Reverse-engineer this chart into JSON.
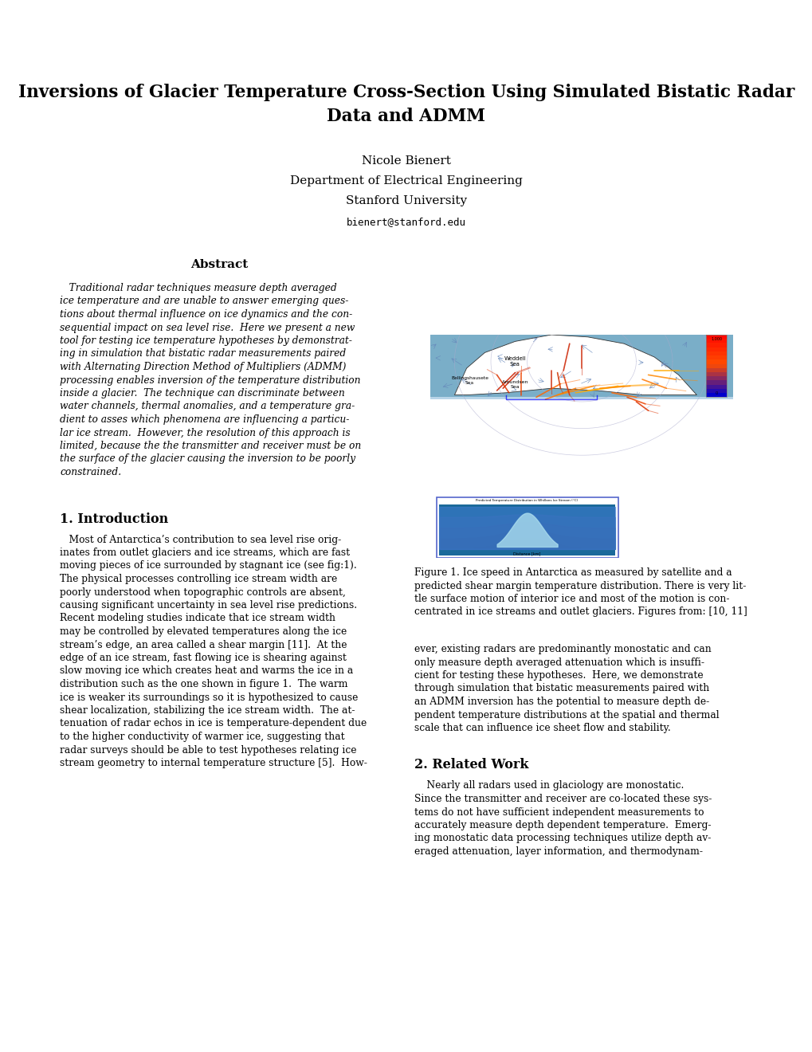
{
  "title_line1": "Inversions of Glacier Temperature Cross-Section Using Simulated Bistatic Radar",
  "title_line2": "Data and ADMM",
  "author": "Nicole Bienert",
  "affil1": "Department of Electrical Engineering",
  "affil2": "Stanford University",
  "email": "bienert@stanford.edu",
  "abstract_title": "Abstract",
  "abstract_text": "Traditional radar techniques measure depth averaged ice temperature and are unable to answer emerging questions about thermal influence on ice dynamics and the consequential impact on sea level rise. Here we present a new tool for testing ice temperature hypotheses by demonstrating in simulation that bistatic radar measurements paired with Alternating Direction Method of Multipliers (ADMM) processing enables inversion of the temperature distribution inside a glacier.  The technique can discriminate between water channels, thermal anomalies, and a temperature gradient to asses which phenomena are influencing a particular ice stream.  However, the resolution of this approach is limited, because the the transmitter and receiver must be on the surface of the glacier causing the inversion to be poorly constrained.",
  "section1_title": "1. Introduction",
  "section1_col1": "    Most of Antarctica’s contribution to sea level rise originates from outlet glaciers and ice streams, which are fast moving pieces of ice surrounded by stagnant ice (see fig:1). The physical processes controlling ice stream width are poorly understood when topographic controls are absent, causing significant uncertainty in sea level rise predictions. Recent modeling studies indicate that ice stream width may be controlled by elevated temperatures along the ice stream’s edge, an area called a shear margin [11].  At the edge of an ice stream, fast flowing ice is shearing against slow moving ice which creates heat and warms the ice in a distribution such as the one shown in figure 1.  The warm ice is weaker its surroundings so it is hypothesized to cause shear localization, stabilizing the ice stream width.  The attenuation of radar echos in ice is temperature-dependent due to the higher conductivity of warmer ice, suggesting that radar surveys should be able to test hypotheses relating ice stream geometry to internal temperature structure [5].  How-",
  "section1_col2": "ever, existing radars are predominantly monostatic and can only measure depth averaged attenuation which is insufficient for testing these hypotheses.  Here, we demonstrate through simulation that bistatic measurements paired with an ADMM inversion has the potential to measure depth dependent temperature distributions at the spatial and thermal scale that can influence ice sheet flow and stability.",
  "section2_title": "2. Related Work",
  "section2_col2": "    Nearly all radars used in glaciology are monostatic. Since the transmitter and receiver are co-located these systems do not have sufficient independent measurements to accurately measure depth dependent temperature.  Emerging monostatic data processing techniques utilize depth averaged attenuation, layer information, and thermodynam-",
  "fig_caption": "Figure 1. Ice speed in Antarctica as measured by satellite and a predicted shear margin temperature distribution. There is very little surface motion of interior ice and most of the motion is concentrated in ice streams and outlet glaciers. Figures from: [10, 11]",
  "bg_color": "#ffffff",
  "text_color": "#000000"
}
